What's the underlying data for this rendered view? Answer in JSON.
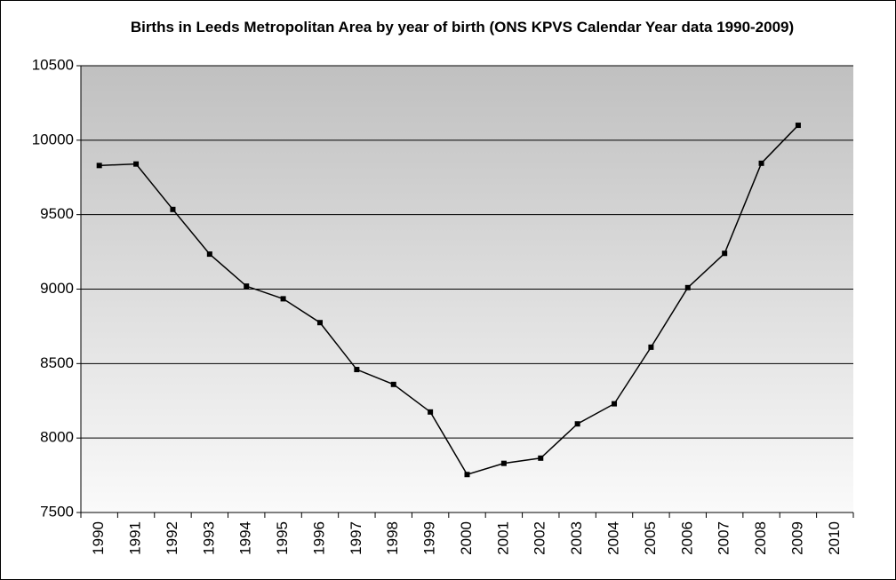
{
  "chart_data": {
    "type": "line",
    "title": "Births in Leeds Metropolitan Area by year of birth (ONS KPVS Calendar Year data 1990-2009)",
    "categories": [
      "1990",
      "1991",
      "1992",
      "1993",
      "1994",
      "1995",
      "1996",
      "1997",
      "1998",
      "1999",
      "2000",
      "2001",
      "2002",
      "2003",
      "2004",
      "2005",
      "2006",
      "2007",
      "2008",
      "2009",
      "2010"
    ],
    "values": [
      9830,
      9840,
      9535,
      9235,
      9020,
      8935,
      8775,
      8460,
      8360,
      8175,
      7755,
      7830,
      7865,
      8095,
      8230,
      8610,
      9010,
      9240,
      9845,
      10100,
      null
    ],
    "color": "#000000",
    "ylim": [
      7500,
      10500
    ],
    "yticks": [
      7500,
      8000,
      8500,
      9000,
      9500,
      10000,
      10500
    ],
    "grid": true
  }
}
